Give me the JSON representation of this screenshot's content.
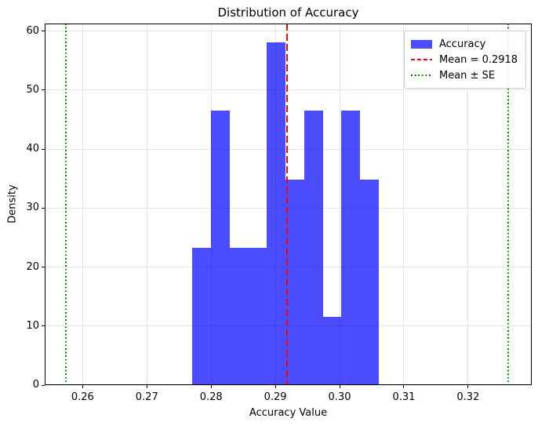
{
  "chart_data": {
    "type": "bar",
    "subtype": "histogram",
    "title": "Distribution of Accuracy",
    "xlabel": "Accuracy Value",
    "ylabel": "Density",
    "xlim": [
      0.2541,
      0.3299
    ],
    "ylim": [
      0,
      61.3
    ],
    "xtick_values": [
      0.26,
      0.27,
      0.28,
      0.29,
      0.3,
      0.31,
      0.32
    ],
    "xtick_labels": [
      "0.26",
      "0.27",
      "0.28",
      "0.29",
      "0.30",
      "0.31",
      "0.32"
    ],
    "ytick_values": [
      0,
      10,
      20,
      30,
      40,
      50,
      60
    ],
    "ytick_labels": [
      "0",
      "10",
      "20",
      "30",
      "40",
      "50",
      "60"
    ],
    "grid": true,
    "histogram": {
      "series_name": "Accuracy",
      "bar_color": "#0000ff",
      "bar_alpha": 0.7,
      "bin_edges": [
        0.2771,
        0.28,
        0.2829,
        0.2858,
        0.2887,
        0.2916,
        0.2945,
        0.2974,
        0.3003,
        0.3032,
        0.3061
      ],
      "densities": [
        23.24,
        46.49,
        23.24,
        23.24,
        58.11,
        34.87,
        46.49,
        11.62,
        46.49,
        34.87
      ]
    },
    "mean_line": {
      "value": 0.2918,
      "color": "#ff0000",
      "linestyle": "dashed"
    },
    "se_lines": {
      "values": [
        0.2574,
        0.3262
      ],
      "color": "#008000",
      "linestyle": "dotted"
    },
    "legend": {
      "position": "upper right",
      "entries": [
        {
          "label": "Accuracy",
          "handle": "patch",
          "color": "#0000ff"
        },
        {
          "label": "Mean = 0.2918",
          "handle": "dashed-line",
          "color": "#ff0000"
        },
        {
          "label": "Mean ± SE",
          "handle": "dotted-line",
          "color": "#008000"
        }
      ]
    }
  }
}
